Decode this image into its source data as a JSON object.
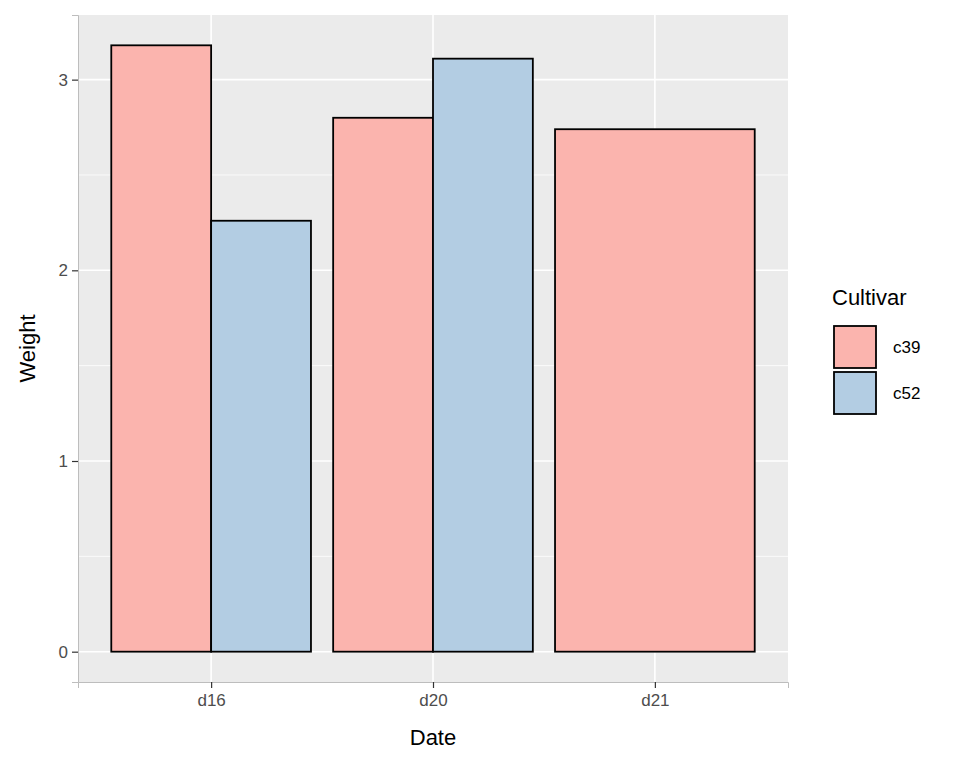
{
  "chart_data": {
    "type": "bar",
    "xlabel": "Date",
    "ylabel": "Weight",
    "legend_title": "Cultivar",
    "categories": [
      "d16",
      "d20",
      "d21"
    ],
    "series": [
      {
        "name": "c39",
        "color": "#fbb4ae",
        "values": [
          3.18,
          2.8,
          2.74
        ]
      },
      {
        "name": "c52",
        "color": "#b3cde3",
        "values": [
          2.26,
          3.11,
          null
        ]
      }
    ],
    "ylim": [
      -0.159,
      3.339
    ],
    "yticks": [
      0,
      1,
      2,
      3
    ],
    "grid": true,
    "legend": "right"
  }
}
